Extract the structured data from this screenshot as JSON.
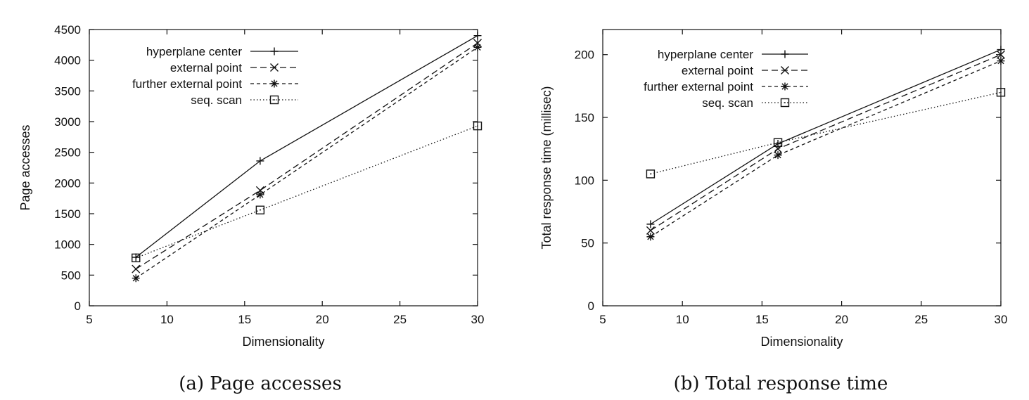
{
  "colors": {
    "axis": "#111111",
    "series": "#111111",
    "background": "#ffffff"
  },
  "chart_data": [
    {
      "type": "line",
      "caption": "(a) Page accesses",
      "xlabel": "Dimensionality",
      "ylabel": "Page accesses",
      "xlim": [
        5,
        30
      ],
      "ylim": [
        0,
        4500
      ],
      "xticks": [
        5,
        10,
        15,
        20,
        25,
        30
      ],
      "yticks": [
        0,
        500,
        1000,
        1500,
        2000,
        2500,
        3000,
        3500,
        4000,
        4500
      ],
      "grid": false,
      "legend_position": "top-left",
      "x": [
        8,
        16,
        30
      ],
      "series": [
        {
          "name": "hyperplane center",
          "marker": "plus",
          "dash": "solid",
          "values": [
            790,
            2360,
            4400
          ]
        },
        {
          "name": "external point",
          "marker": "x",
          "dash": "dashed",
          "values": [
            600,
            1880,
            4280
          ]
        },
        {
          "name": "further external point",
          "marker": "star",
          "dash": "short-dashed",
          "values": [
            450,
            1810,
            4210
          ]
        },
        {
          "name": "seq. scan",
          "marker": "square",
          "dash": "dotted",
          "values": [
            780,
            1560,
            2930
          ]
        }
      ]
    },
    {
      "type": "line",
      "caption": "(b) Total response time",
      "xlabel": "Dimensionality",
      "ylabel": "Total response time (millisec)",
      "xlim": [
        5,
        30
      ],
      "ylim": [
        0,
        220
      ],
      "xticks": [
        5,
        10,
        15,
        20,
        25,
        30
      ],
      "yticks": [
        0,
        50,
        100,
        150,
        200
      ],
      "grid": false,
      "legend_position": "top-left",
      "x": [
        8,
        16,
        30
      ],
      "series": [
        {
          "name": "hyperplane center",
          "marker": "plus",
          "dash": "solid",
          "values": [
            65,
            129,
            204
          ]
        },
        {
          "name": "external point",
          "marker": "x",
          "dash": "dashed",
          "values": [
            60,
            125,
            200
          ]
        },
        {
          "name": "further external point",
          "marker": "star",
          "dash": "short-dashed",
          "values": [
            55,
            120,
            195
          ]
        },
        {
          "name": "seq. scan",
          "marker": "square",
          "dash": "dotted",
          "values": [
            105,
            130,
            170
          ]
        }
      ]
    }
  ]
}
